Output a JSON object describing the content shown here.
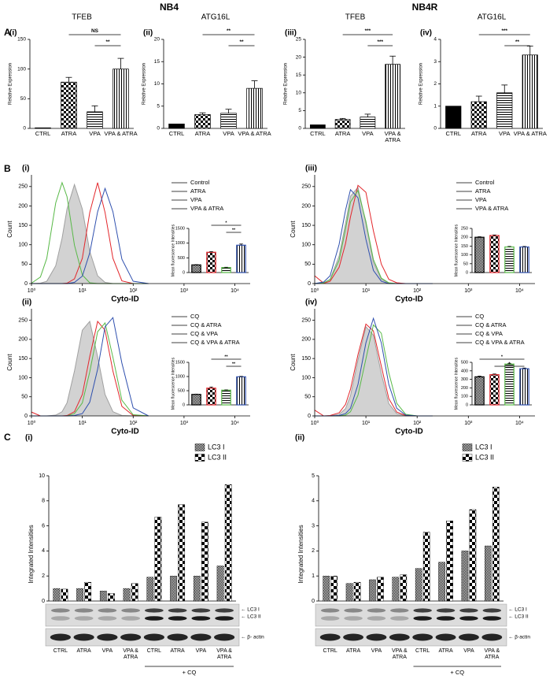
{
  "headings": [
    "NB4",
    "NB4R"
  ],
  "sections": [
    "A",
    "B",
    "C"
  ],
  "chart_data": [
    {
      "type": "bar",
      "panel": "(i)",
      "title": "TFEB",
      "ylabel": "Relative Expression",
      "categories": [
        "CTRL",
        "ATRA",
        "VPA",
        "VPA & ATRA"
      ],
      "values": [
        1,
        78,
        28,
        100
      ],
      "errors": [
        null,
        8,
        10,
        18
      ],
      "patterns": [
        "solid",
        "checker",
        "hlines",
        "vlines"
      ],
      "ylim": [
        0,
        150
      ],
      "yticks": [
        0,
        50,
        100,
        150
      ],
      "annotations": [
        {
          "from": 1,
          "to": 3,
          "label": "NS"
        },
        {
          "from": 2,
          "to": 3,
          "label": "**"
        }
      ]
    },
    {
      "type": "bar",
      "panel": "(ii)",
      "title": "ATG16L",
      "ylabel": "Relative Expression",
      "categories": [
        "CTRL",
        "ATRA",
        "VPA",
        "VPA & ATRA"
      ],
      "values": [
        1,
        3.1,
        3.4,
        9
      ],
      "errors": [
        null,
        0.4,
        0.9,
        1.7
      ],
      "patterns": [
        "solid",
        "checker",
        "hlines",
        "vlines"
      ],
      "ylim": [
        0,
        20
      ],
      "yticks": [
        0,
        5,
        10,
        15,
        20
      ],
      "annotations": [
        {
          "from": 1,
          "to": 3,
          "label": "**"
        },
        {
          "from": 2,
          "to": 3,
          "label": "**"
        }
      ]
    },
    {
      "type": "bar",
      "panel": "(iii)",
      "title": "TFEB",
      "ylabel": "Relative Expression",
      "categories": [
        "CTRL",
        "ATRA",
        "VPA",
        "VPA & ATRA"
      ],
      "values": [
        1,
        2.5,
        3.2,
        18
      ],
      "errors": [
        null,
        0.3,
        0.8,
        2.3
      ],
      "patterns": [
        "solid",
        "checker",
        "hlines",
        "vlines"
      ],
      "ylim": [
        0,
        25
      ],
      "yticks": [
        0,
        5,
        10,
        15,
        20,
        25
      ],
      "annotations": [
        {
          "from": 1,
          "to": 3,
          "label": "***"
        },
        {
          "from": 2,
          "to": 3,
          "label": "***"
        }
      ]
    },
    {
      "type": "bar",
      "panel": "(iv)",
      "title": "ATG16L",
      "ylabel": "Relative Expression",
      "categories": [
        "CTRL",
        "ATRA",
        "VPA",
        "VPA & ATRA"
      ],
      "values": [
        1,
        1.2,
        1.6,
        3.3
      ],
      "errors": [
        null,
        0.25,
        0.35,
        0.4
      ],
      "patterns": [
        "solid",
        "checker",
        "hlines",
        "vlines"
      ],
      "ylim": [
        0,
        4
      ],
      "yticks": [
        0,
        1,
        2,
        3,
        4
      ],
      "annotations": [
        {
          "from": 1,
          "to": 3,
          "label": "***"
        },
        {
          "from": 2,
          "to": 3,
          "label": "**"
        }
      ]
    },
    {
      "type": "density",
      "panel": "(i)",
      "ylabel": "Count",
      "xlabel": "Cyto-ID",
      "log_x": true,
      "x": [
        1,
        1.5,
        2,
        3,
        4,
        5,
        7,
        10,
        14,
        20,
        28,
        40,
        60,
        100,
        200
      ],
      "xlim": [
        1,
        20000
      ],
      "xticks": [
        {
          "value": 1,
          "label": "10⁰"
        },
        {
          "value": 10,
          "label": "10¹"
        },
        {
          "value": 100,
          "label": "10²"
        },
        {
          "value": 1000,
          "label": "10³"
        },
        {
          "value": 10000,
          "label": "10⁴"
        }
      ],
      "ylim": [
        0,
        280
      ],
      "yticks": [
        0,
        50,
        100,
        150,
        200,
        250
      ],
      "series": [
        {
          "name": "Control",
          "color": "#a0a0a0",
          "fill": "#d2d2d2",
          "values": [
            0,
            1,
            6,
            46,
            117,
            192,
            255,
            192,
            83,
            20,
            3,
            0,
            0,
            0,
            0
          ]
        },
        {
          "name": "ATRA",
          "color": "#e3262b",
          "values": [
            0,
            0,
            0,
            0,
            0,
            1,
            12,
            65,
            183,
            260,
            183,
            65,
            7,
            0,
            0
          ]
        },
        {
          "name": "VPA",
          "color": "#58b947",
          "values": [
            1,
            17,
            65,
            208,
            260,
            224,
            99,
            22,
            2,
            0,
            0,
            0,
            0,
            0,
            0
          ]
        },
        {
          "name": "VPA & ATRA",
          "color": "#2e4fae",
          "values": [
            0,
            0,
            0,
            0,
            0,
            0,
            3,
            19,
            79,
            185,
            245,
            185,
            63,
            6,
            0
          ]
        }
      ],
      "inset": {
        "type": "bar",
        "ylabel": "Mean fluorescence Intensities",
        "values": [
          260,
          690,
          170,
          930
        ],
        "errors": [
          10,
          20,
          10,
          40
        ],
        "patterns": [
          "fine",
          "checker",
          "hlines",
          "vlines"
        ],
        "colors": [
          "#000000",
          "#e3262b",
          "#58b947",
          "#2e4fae"
        ],
        "ylim": [
          0,
          1500
        ],
        "yticks": [
          0,
          500,
          1000,
          1500
        ],
        "annotations": [
          {
            "from": 1,
            "to": 3,
            "label": "*"
          },
          {
            "from": 2,
            "to": 3,
            "label": "**"
          }
        ]
      }
    },
    {
      "type": "density",
      "panel": "(iii)",
      "ylabel": "Count",
      "xlabel": "Cyto-ID",
      "log_x": true,
      "x": [
        1,
        1.5,
        2,
        3,
        4,
        5,
        7,
        10,
        14,
        20,
        28,
        40,
        60,
        100,
        200
      ],
      "xlim": [
        1,
        20000
      ],
      "xticks": [
        {
          "value": 1,
          "label": "10⁰"
        },
        {
          "value": 10,
          "label": "10¹"
        },
        {
          "value": 100,
          "label": "10²"
        },
        {
          "value": 1000,
          "label": "10³"
        },
        {
          "value": 10000,
          "label": "10⁴"
        }
      ],
      "ylim": [
        0,
        280
      ],
      "yticks": [
        0,
        50,
        100,
        150,
        200,
        250
      ],
      "series": [
        {
          "name": "Control",
          "color": "#a0a0a0",
          "fill": "#d2d2d2",
          "values": [
            0,
            2,
            11,
            71,
            155,
            225,
            248,
            155,
            55,
            11,
            1,
            0,
            0,
            0,
            0
          ]
        },
        {
          "name": "ATRA",
          "color": "#e3262b",
          "values": [
            20,
            1,
            6,
            42,
            103,
            172,
            253,
            235,
            136,
            50,
            11,
            2,
            0,
            0,
            0
          ]
        },
        {
          "name": "VPA",
          "color": "#58b947",
          "values": [
            0,
            2,
            10,
            60,
            140,
            210,
            240,
            160,
            62,
            14,
            2,
            0,
            0,
            0,
            0
          ]
        },
        {
          "name": "VPA & ATRA",
          "color": "#2e4fae",
          "values": [
            0,
            4,
            20,
            101,
            189,
            242,
            221,
            114,
            34,
            6,
            0,
            0,
            0,
            0,
            0
          ]
        }
      ],
      "inset": {
        "type": "bar",
        "ylabel": "Mean fluorescence Intensities",
        "values": [
          200,
          210,
          145,
          145
        ],
        "errors": [
          3,
          3,
          3,
          3
        ],
        "patterns": [
          "fine",
          "checker",
          "hlines",
          "vlines"
        ],
        "colors": [
          "#000000",
          "#e3262b",
          "#58b947",
          "#2e4fae"
        ],
        "ylim": [
          0,
          250
        ],
        "yticks": [
          0,
          50,
          100,
          150,
          200,
          250
        ]
      }
    },
    {
      "type": "density",
      "panel": "(ii)",
      "ylabel": "Count",
      "xlabel": "Cyto-ID",
      "log_x": true,
      "x": [
        1,
        1.5,
        2,
        3,
        4,
        5,
        7,
        10,
        14,
        20,
        28,
        40,
        60,
        100,
        200
      ],
      "xlim": [
        1,
        20000
      ],
      "xticks": [
        {
          "value": 1,
          "label": "10⁰"
        },
        {
          "value": 10,
          "label": "10¹"
        },
        {
          "value": 100,
          "label": "10²"
        },
        {
          "value": 1000,
          "label": "10³"
        },
        {
          "value": 10000,
          "label": "10⁴"
        }
      ],
      "ylim": [
        0,
        280
      ],
      "yticks": [
        0,
        50,
        100,
        150,
        200,
        250
      ],
      "series": [
        {
          "name": "CQ",
          "color": "#a0a0a0",
          "fill": "#d2d2d2",
          "values": [
            0,
            0,
            0,
            2,
            11,
            34,
            117,
            224,
            247,
            155,
            56,
            11,
            1,
            0,
            0
          ]
        },
        {
          "name": "CQ & ATRA",
          "color": "#e3262b",
          "values": [
            10,
            0,
            0,
            0,
            0,
            1,
            11,
            56,
            155,
            247,
            224,
            117,
            25,
            1,
            0
          ]
        },
        {
          "name": "CQ & VPA",
          "color": "#58b947",
          "values": [
            0,
            0,
            0,
            0,
            0,
            0,
            6,
            34,
            115,
            220,
            243,
            153,
            41,
            3,
            0
          ]
        },
        {
          "name": "CQ & VPA & ATRA",
          "color": "#2e4fae",
          "values": [
            0,
            0,
            0,
            0,
            0,
            0,
            1,
            6,
            36,
            122,
            233,
            257,
            138,
            21,
            0
          ]
        }
      ],
      "inset": {
        "type": "bar",
        "ylabel": "Mean fluorescence Intensities",
        "values": [
          370,
          590,
          520,
          990
        ],
        "errors": [
          10,
          40,
          10,
          15
        ],
        "patterns": [
          "fine",
          "checker",
          "hlines",
          "vlines"
        ],
        "colors": [
          "#000000",
          "#e3262b",
          "#58b947",
          "#2e4fae"
        ],
        "ylim": [
          0,
          1500
        ],
        "yticks": [
          0,
          500,
          1000,
          1500
        ],
        "annotations": [
          {
            "from": 1,
            "to": 3,
            "label": "**"
          },
          {
            "from": 2,
            "to": 3,
            "label": "**"
          }
        ]
      }
    },
    {
      "type": "density",
      "panel": "(iv)",
      "ylabel": "Count",
      "xlabel": "Cyto-ID",
      "log_x": true,
      "x": [
        1,
        1.5,
        2,
        3,
        4,
        5,
        7,
        10,
        14,
        20,
        28,
        40,
        60,
        100,
        200
      ],
      "xlim": [
        1,
        20000
      ],
      "xticks": [
        {
          "value": 1,
          "label": "10⁰"
        },
        {
          "value": 10,
          "label": "10¹"
        },
        {
          "value": 100,
          "label": "10²"
        },
        {
          "value": 1000,
          "label": "10³"
        },
        {
          "value": 10000,
          "label": "10⁴"
        }
      ],
      "ylim": [
        0,
        280
      ],
      "yticks": [
        0,
        50,
        100,
        150,
        200,
        250
      ],
      "series": [
        {
          "name": "CQ",
          "color": "#a0a0a0",
          "fill": "#d2d2d2",
          "values": [
            0,
            0,
            0,
            4,
            19,
            53,
            146,
            233,
            211,
            110,
            32,
            6,
            0,
            0,
            0
          ]
        },
        {
          "name": "CQ & ATRA",
          "color": "#e3262b",
          "values": [
            15,
            0,
            1,
            8,
            30,
            70,
            160,
            240,
            222,
            130,
            45,
            10,
            1,
            0,
            0
          ]
        },
        {
          "name": "CQ & VPA",
          "color": "#58b947",
          "values": [
            0,
            0,
            0,
            0,
            2,
            11,
            54,
            149,
            238,
            216,
            113,
            33,
            4,
            0,
            0
          ]
        },
        {
          "name": "CQ & VPA & ATRA",
          "color": "#2e4fae",
          "values": [
            0,
            0,
            0,
            1,
            6,
            20,
            82,
            191,
            255,
            191,
            82,
            20,
            2,
            0,
            0
          ]
        }
      ],
      "inset": {
        "type": "bar",
        "ylabel": "Mean fluorescence Intensities",
        "values": [
          330,
          355,
          480,
          425
        ],
        "errors": [
          8,
          8,
          8,
          8
        ],
        "patterns": [
          "fine",
          "checker",
          "hlines",
          "vlines"
        ],
        "colors": [
          "#000000",
          "#e3262b",
          "#58b947",
          "#2e4fae"
        ],
        "ylim": [
          0,
          500
        ],
        "yticks": [
          0,
          100,
          200,
          300,
          400,
          500
        ],
        "annotations": [
          {
            "from": 0,
            "to": 3,
            "label": "*"
          },
          {
            "from": 1,
            "to": 3,
            "label": "*"
          }
        ]
      }
    },
    {
      "type": "grouped_bar",
      "panel": "(i)",
      "ylabel": "Integrated Intensities",
      "categories": [
        "CTRL",
        "ATRA",
        "VPA",
        "VPA & ATRA",
        "CTRL",
        "ATRA",
        "VPA",
        "VPA & ATRA"
      ],
      "group_label": "+ CQ",
      "group_from": 4,
      "ylim": [
        0,
        10
      ],
      "yticks": [
        0,
        2,
        4,
        6,
        8,
        10
      ],
      "series": [
        {
          "name": "LC3 I",
          "pattern": "fine",
          "values": [
            1.0,
            1.0,
            0.8,
            1.0,
            1.9,
            2.0,
            2.0,
            2.8
          ]
        },
        {
          "name": "LC3 II",
          "pattern": "coarse",
          "values": [
            0.95,
            1.5,
            0.6,
            1.4,
            6.7,
            7.7,
            6.3,
            9.3
          ]
        }
      ],
      "blot_labels": [
        "← LC3 I",
        "← LC3 II",
        "← β- actin"
      ]
    },
    {
      "type": "grouped_bar",
      "panel": "(ii)",
      "ylabel": "Integrated Intensities",
      "categories": [
        "CTRL",
        "ATRA",
        "VPA",
        "VPA & ATRA",
        "CTRL",
        "ATRA",
        "VPA",
        "VPA & ATRA"
      ],
      "group_label": "+ CQ",
      "group_from": 4,
      "ylim": [
        0,
        5
      ],
      "yticks": [
        0,
        1,
        2,
        3,
        4,
        5
      ],
      "series": [
        {
          "name": "LC3 I",
          "pattern": "fine",
          "values": [
            1.0,
            0.7,
            0.85,
            0.95,
            1.3,
            1.55,
            2.0,
            2.2
          ]
        },
        {
          "name": "LC3 II",
          "pattern": "coarse",
          "values": [
            1.0,
            0.75,
            0.95,
            1.05,
            2.75,
            3.2,
            3.65,
            4.55
          ]
        }
      ],
      "blot_labels": [
        "← LC3 I",
        "← LC3 II",
        "← β-actin"
      ]
    }
  ]
}
